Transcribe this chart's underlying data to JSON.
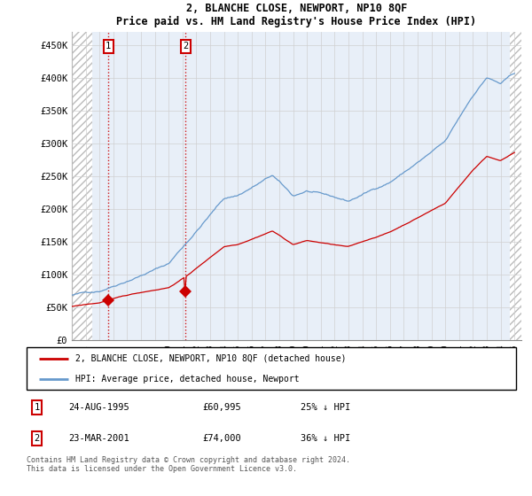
{
  "title": "2, BLANCHE CLOSE, NEWPORT, NP10 8QF",
  "subtitle": "Price paid vs. HM Land Registry's House Price Index (HPI)",
  "ylim": [
    0,
    470000
  ],
  "xlim_start": 1993.0,
  "xlim_end": 2025.5,
  "legend_line1": "2, BLANCHE CLOSE, NEWPORT, NP10 8QF (detached house)",
  "legend_line2": "HPI: Average price, detached house, Newport",
  "sale1_date": "24-AUG-1995",
  "sale1_price": "£60,995",
  "sale1_hpi": "25% ↓ HPI",
  "sale1_x": 1995.65,
  "sale1_y": 60995,
  "sale2_date": "23-MAR-2001",
  "sale2_price": "£74,000",
  "sale2_hpi": "36% ↓ HPI",
  "sale2_x": 2001.22,
  "sale2_y": 74000,
  "footnote_line1": "Contains HM Land Registry data © Crown copyright and database right 2024.",
  "footnote_line2": "This data is licensed under the Open Government Licence v3.0.",
  "sale_color": "#cc0000",
  "hpi_color": "#6699cc",
  "hatch_left_end": 1994.5,
  "hatch_right_start": 2024.67
}
